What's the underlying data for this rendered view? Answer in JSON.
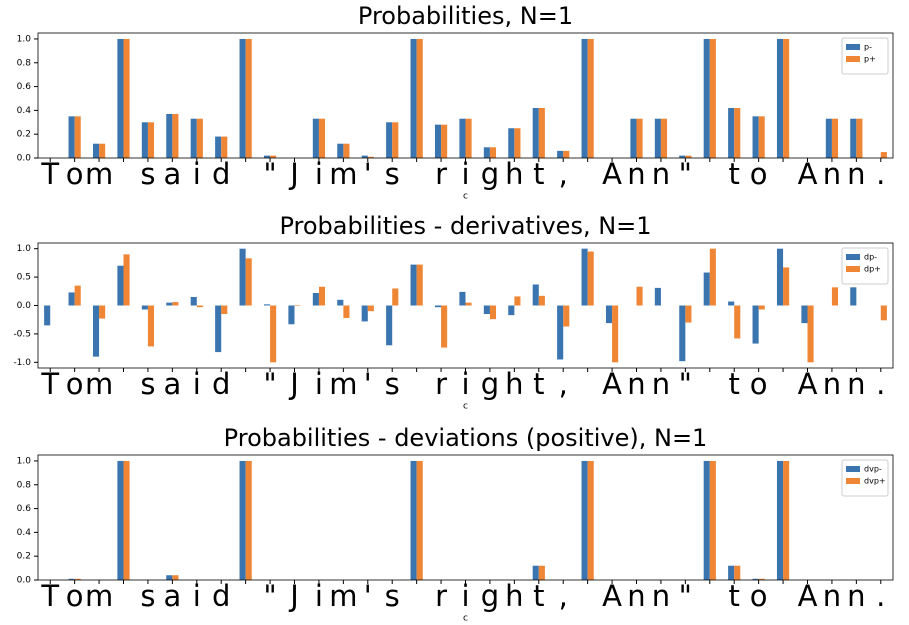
{
  "chart_data": [
    {
      "type": "bar",
      "title": "Probabilities, N=1",
      "xlabel": "c",
      "categories": [
        "T",
        "o",
        "m",
        null,
        "s",
        "a",
        "i",
        "d",
        null,
        "\"",
        "J",
        "i",
        "m",
        "'",
        "s",
        null,
        "r",
        "i",
        "g",
        "h",
        "t",
        ",",
        null,
        "A",
        "n",
        "n",
        "\"",
        null,
        "t",
        "o",
        null,
        "A",
        "n",
        "n",
        "."
      ],
      "series": [
        {
          "name": "p-",
          "color": "#3b75af",
          "values": [
            0,
            0.35,
            0.12,
            1,
            0.3,
            0.37,
            0.33,
            0.18,
            1,
            0.02,
            0,
            0.33,
            0.12,
            0.02,
            0.3,
            1,
            0.28,
            0.33,
            0.09,
            0.25,
            0.42,
            0.06,
            1,
            0,
            0.33,
            0.33,
            0.02,
            1,
            0.42,
            0.35,
            1,
            0,
            0.33,
            0.33,
            0
          ]
        },
        {
          "name": "p+",
          "color": "#ef8636",
          "values": [
            0,
            0.35,
            0.12,
            1,
            0.3,
            0.37,
            0.33,
            0.18,
            1,
            0.02,
            0,
            0.33,
            0.12,
            0.01,
            0.3,
            1,
            0.28,
            0.33,
            0.09,
            0.25,
            0.42,
            0.06,
            1,
            0,
            0.33,
            0.33,
            0.02,
            1,
            0.42,
            0.35,
            1,
            0,
            0.33,
            0.33,
            0.05
          ]
        }
      ],
      "ylim": [
        0,
        1.05
      ],
      "yticks": [
        {
          "value": 0,
          "label": "0.0"
        },
        0.2,
        0.4,
        0.6,
        0.8,
        {
          "value": 1,
          "label": "1.0"
        }
      ],
      "legend": "upper right"
    },
    {
      "type": "bar",
      "title": "Probabilities - derivatives, N=1",
      "xlabel": "c",
      "categories": [
        "T",
        "o",
        "m",
        null,
        "s",
        "a",
        "i",
        "d",
        null,
        "\"",
        "J",
        "i",
        "m",
        "'",
        "s",
        null,
        "r",
        "i",
        "g",
        "h",
        "t",
        ",",
        null,
        "A",
        "n",
        "n",
        "\"",
        null,
        "t",
        "o",
        null,
        "A",
        "n",
        "n",
        "."
      ],
      "series": [
        {
          "name": "dp-",
          "color": "#3b75af",
          "values": [
            -0.35,
            0.23,
            -0.9,
            0.7,
            -0.07,
            0.05,
            0.15,
            -0.82,
            1,
            0.02,
            -0.33,
            0.22,
            0.1,
            -0.28,
            -0.7,
            0.72,
            -0.03,
            0.24,
            -0.15,
            -0.17,
            0.37,
            -0.95,
            1,
            -0.31,
            0,
            0.31,
            -0.98,
            0.58,
            0.07,
            -0.67,
            1,
            -0.31,
            0,
            0.32,
            0
          ]
        },
        {
          "name": "dp+",
          "color": "#ef8636",
          "values": [
            0,
            0.35,
            -0.23,
            0.9,
            -0.72,
            0.06,
            -0.03,
            -0.15,
            0.83,
            -1,
            -0.01,
            0.33,
            -0.22,
            -0.1,
            0.3,
            0.72,
            -0.74,
            0.05,
            -0.24,
            0.16,
            0.17,
            -0.37,
            0.95,
            -1,
            0.33,
            0,
            -0.3,
            1,
            -0.58,
            -0.07,
            0.67,
            -1,
            0.32,
            0,
            -0.26
          ]
        }
      ],
      "ylim": [
        -1.1,
        1.1
      ],
      "yticks": [
        {
          "value": -1,
          "label": "-1.0"
        },
        -0.5,
        {
          "value": 0,
          "label": "0.0"
        },
        0.5,
        {
          "value": 1,
          "label": "1.0"
        }
      ],
      "legend": "upper right"
    },
    {
      "type": "bar",
      "title": "Probabilities - deviations (positive), N=1",
      "xlabel": "c",
      "categories": [
        "T",
        "o",
        "m",
        null,
        "s",
        "a",
        "i",
        "d",
        null,
        "\"",
        "J",
        "i",
        "m",
        "'",
        "s",
        null,
        "r",
        "i",
        "g",
        "h",
        "t",
        ",",
        null,
        "A",
        "n",
        "n",
        "\"",
        null,
        "t",
        "o",
        null,
        "A",
        "n",
        "n",
        "."
      ],
      "series": [
        {
          "name": "dvp-",
          "color": "#3b75af",
          "values": [
            0,
            0.01,
            0,
            1,
            0,
            0.04,
            0,
            0,
            1,
            0,
            0,
            0,
            0,
            0,
            0,
            1,
            0,
            0,
            0,
            0,
            0.12,
            0,
            1,
            0,
            0,
            0,
            0,
            1,
            0.12,
            0.01,
            1,
            0,
            0,
            0,
            0
          ]
        },
        {
          "name": "dvp+",
          "color": "#ef8636",
          "values": [
            0,
            0.01,
            0,
            1,
            0,
            0.04,
            0,
            0,
            1,
            0,
            0,
            0,
            0,
            0,
            0,
            1,
            0,
            0,
            0,
            0,
            0.12,
            0,
            1,
            0,
            0,
            0,
            0,
            1,
            0.12,
            0.01,
            1,
            0,
            0,
            0,
            0
          ]
        }
      ],
      "ylim": [
        0,
        1.05
      ],
      "yticks": [
        {
          "value": 0,
          "label": "0.0"
        },
        0.2,
        0.4,
        0.6,
        0.8,
        {
          "value": 1,
          "label": "1.0"
        }
      ],
      "legend": "upper right"
    }
  ]
}
